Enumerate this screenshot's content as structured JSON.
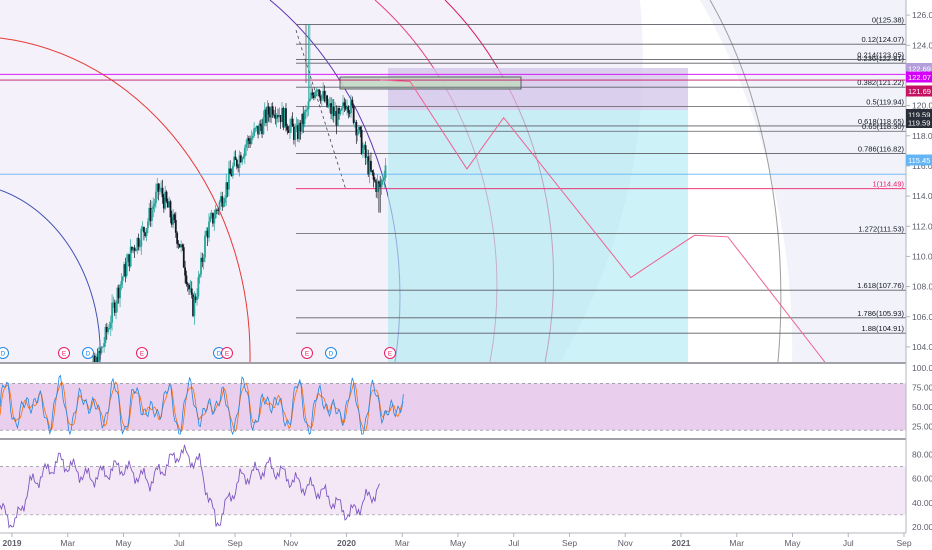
{
  "chart_data": [
    {
      "type": "candlestick",
      "pane": "price",
      "ylim": [
        103,
        127
      ],
      "y_ticks": [
        "126.00",
        "124.00",
        "122.00",
        "120.00",
        "118.00",
        "116.00",
        "114.00",
        "112.00",
        "110.00",
        "108.00",
        "106.00",
        "104.00"
      ],
      "current_price_label": "115.45",
      "price_tags": [
        {
          "value": 122.69,
          "label": "122.69",
          "color": "#b39ddb"
        },
        {
          "value": 122.07,
          "label": "122.07",
          "color": "#d500f9"
        },
        {
          "value": 121.69,
          "label": "121.69",
          "color": "#c51162"
        },
        {
          "value": 119.59,
          "label": "119.59",
          "color": "#2a2e39"
        },
        {
          "value": 119.59,
          "label": "119.59",
          "color": "#2a2e39"
        },
        {
          "value": 115.45,
          "label": "115.45",
          "color": "#64b5f6"
        }
      ],
      "fib_levels": [
        {
          "label": "0(125.38)",
          "value": 125.38
        },
        {
          "label": "0.12(124.07)",
          "value": 124.07
        },
        {
          "label": "0.214(123.05)",
          "value": 123.05
        },
        {
          "label": "0.236(122.81)",
          "value": 122.81
        },
        {
          "label": "0.382(121.22)",
          "value": 121.22
        },
        {
          "label": "0.5(119.94)",
          "value": 119.94
        },
        {
          "label": "0.618(118.65)",
          "value": 118.65
        },
        {
          "label": "0.65(118.30)",
          "value": 118.3
        },
        {
          "label": "0.786(116.82)",
          "value": 116.82
        },
        {
          "label": "1(114.49)",
          "value": 114.49
        },
        {
          "label": "1.272(111.53)",
          "value": 111.53
        },
        {
          "label": "1.618(107.76)",
          "value": 107.76
        },
        {
          "label": "1.786(105.93)",
          "value": 105.93
        },
        {
          "label": "1.88(104.91)",
          "value": 104.91
        }
      ],
      "x_ticks": [
        "2019",
        "Mar",
        "May",
        "Jul",
        "Sep",
        "Nov",
        "2020",
        "Mar",
        "May",
        "Jul",
        "Sep",
        "Nov",
        "2021",
        "Mar",
        "May",
        "Jul",
        "Sep"
      ],
      "events": [
        "D",
        "E",
        "D",
        "E",
        "D",
        "E",
        "E",
        "D",
        "E"
      ],
      "projection_path": [
        [
          2020.1,
          121.7
        ],
        [
          2020.19,
          121.6
        ],
        [
          2020.36,
          115.8
        ],
        [
          2020.47,
          119.2
        ],
        [
          2020.85,
          108.6
        ],
        [
          2021.04,
          111.4
        ],
        [
          2021.14,
          111.3
        ],
        [
          2021.43,
          103.0
        ]
      ]
    },
    {
      "type": "line",
      "pane": "stochastic",
      "ylim": [
        10,
        105
      ],
      "y_ticks": [
        "100.00",
        "75.00",
        "50.00",
        "25.00"
      ],
      "band": [
        80,
        20
      ]
    },
    {
      "type": "line",
      "pane": "rsi",
      "ylim": [
        15,
        92
      ],
      "y_ticks": [
        "80.00",
        "60.00",
        "40.00",
        "20.00"
      ],
      "band": [
        70,
        30
      ]
    }
  ],
  "colors": {
    "up": "#26a69a",
    "down": "#131722",
    "fib_line": "#5d5d66",
    "fib_one": "#e91e63",
    "projection": "#f06292",
    "long_zone": "#b2ebf2",
    "pane_band": "#e1bee7",
    "stoch_k": "#1e88e5",
    "stoch_d": "#ff6d00",
    "rsi": "#7e57c2"
  }
}
